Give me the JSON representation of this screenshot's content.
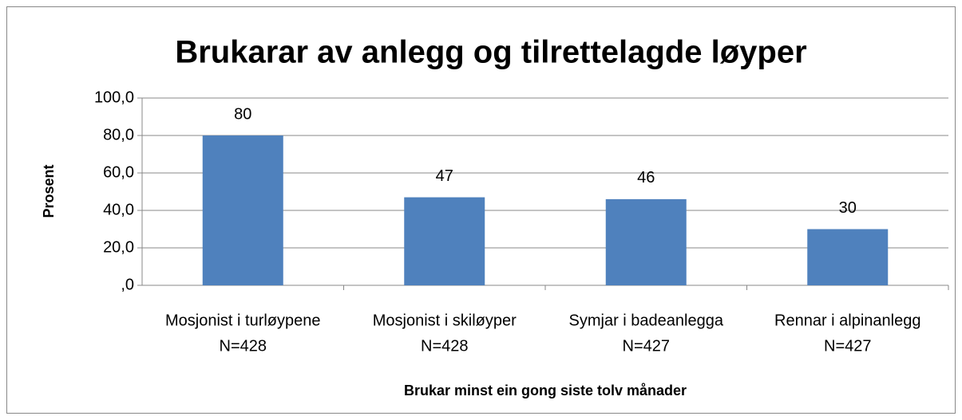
{
  "chart_data": {
    "type": "bar",
    "title": "Brukarar av anlegg og tilrettelagde løyper",
    "ylabel": "Prosent",
    "xlabel": "Brukar minst ein gong siste tolv månader",
    "categories": [
      [
        "Mosjonist i turløypene",
        "N=428"
      ],
      [
        "Mosjonist i skiløyper",
        "N=428"
      ],
      [
        "Symjar i badeanlegga",
        "N=427"
      ],
      [
        "Rennar i alpinanlegg",
        "N=427"
      ]
    ],
    "values": [
      80,
      47,
      46,
      30
    ],
    "color": "#4f81bd",
    "ylim": [
      0,
      100
    ],
    "yticks": [
      {
        "value": 0,
        "label": ",0"
      },
      {
        "value": 20,
        "label": "20,0"
      },
      {
        "value": 40,
        "label": "40,0"
      },
      {
        "value": 60,
        "label": "60,0"
      },
      {
        "value": 80,
        "label": "80,0"
      },
      {
        "value": 100,
        "label": "100,0"
      }
    ],
    "grid": true
  }
}
